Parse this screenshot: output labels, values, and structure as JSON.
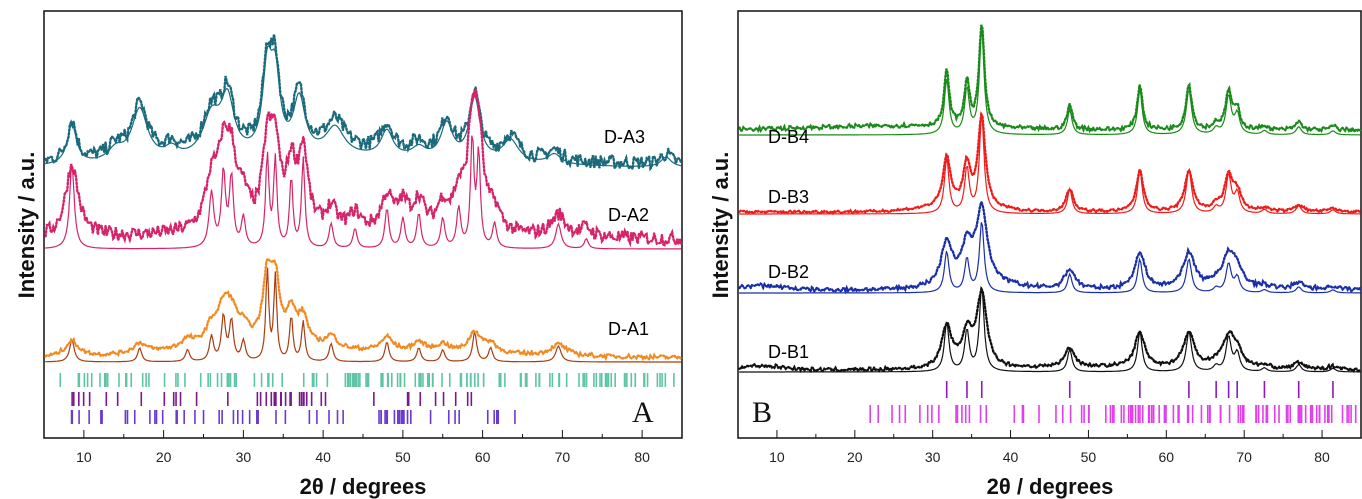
{
  "colors": {
    "A3": "#1b6a7c",
    "A2": "#d6246b",
    "A1_calc": "#a93d12",
    "A1_exp": "#f28a24",
    "B4": "#1a8a1a",
    "B3": "#ef1c1c",
    "B2": "#1b2fa8",
    "B1": "#111111",
    "tick_teal": "#5fc4a6",
    "tick_purple": "#7a1a8a",
    "tick_violet": "#6a3ad0",
    "tick_b_purple": "#8a18c8",
    "tick_magenta": "#e040e8"
  },
  "chart_data": [
    {
      "type": "line",
      "panel": "A",
      "xlabel": "2θ / degrees",
      "ylabel": "Intensity / a.u.",
      "xlim": [
        5,
        85
      ],
      "xticks": [
        10,
        20,
        30,
        40,
        50,
        60,
        70,
        80
      ],
      "series": [
        {
          "name": "D-A3",
          "peaks_2theta": [
            8.5,
            17,
            27.5,
            28.5,
            33,
            34,
            37,
            41.5,
            48,
            55.5,
            59,
            64
          ]
        },
        {
          "name": "D-A2",
          "peaks_2theta": [
            8.5,
            27.5,
            28.5,
            33,
            34,
            36,
            37.5,
            48,
            52,
            56,
            59,
            69.5
          ]
        },
        {
          "name": "D-A1",
          "peaks_2theta": [
            8.5,
            17,
            23,
            27.5,
            28.5,
            33,
            34,
            36,
            37.5,
            48,
            53,
            59,
            69.5
          ]
        }
      ],
      "reference_tick_rows": 3
    },
    {
      "type": "line",
      "panel": "B",
      "xlabel": "2θ / degrees",
      "ylabel": "Intensity / a.u.",
      "xlim": [
        5,
        85
      ],
      "xticks": [
        10,
        20,
        30,
        40,
        50,
        60,
        70,
        80
      ],
      "series": [
        {
          "name": "D-B4",
          "peaks_2theta": [
            31.8,
            34.4,
            36.3,
            47.6,
            56.6,
            62.9,
            68.0,
            69.1,
            77
          ]
        },
        {
          "name": "D-B3",
          "peaks_2theta": [
            31.8,
            34.4,
            36.3,
            47.6,
            56.6,
            62.9,
            68.0,
            69.1,
            77
          ]
        },
        {
          "name": "D-B2",
          "peaks_2theta": [
            31.8,
            34.4,
            36.3,
            47.6,
            56.6,
            62.9,
            68.0,
            69.1
          ]
        },
        {
          "name": "D-B1",
          "peaks_2theta": [
            31.8,
            34.4,
            36.3,
            47.6,
            56.6,
            62.9,
            68.0,
            69.1,
            77
          ]
        }
      ],
      "reference_tick_rows": 2
    }
  ],
  "panels": {
    "A": {
      "letter": "A",
      "ylabel": "Intensity / a.u.",
      "xlabel": "2θ / degrees",
      "labels": [
        "D-A3",
        "D-A2",
        "D-A1"
      ]
    },
    "B": {
      "letter": "B",
      "ylabel": "Intensity / a.u.",
      "xlabel": "2θ / degrees",
      "labels": [
        "D-B4",
        "D-B3",
        "D-B2",
        "D-B1"
      ]
    }
  }
}
